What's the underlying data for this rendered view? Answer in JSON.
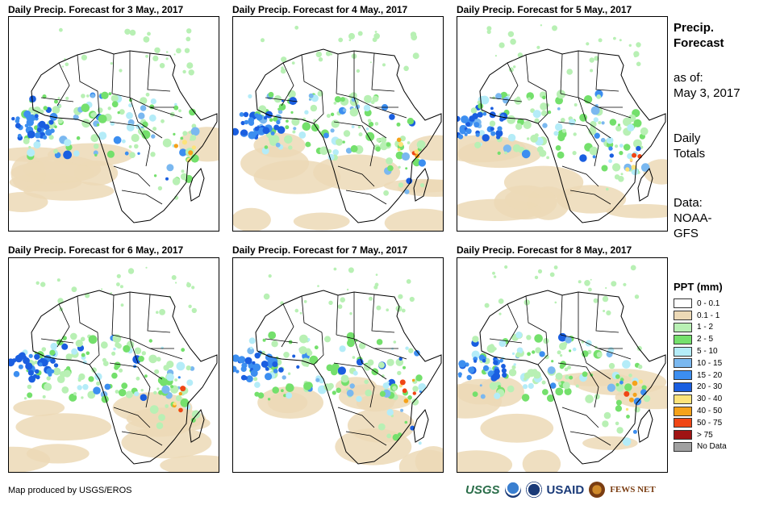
{
  "panels": [
    {
      "title": "Daily Precip. Forecast for 3 May., 2017"
    },
    {
      "title": "Daily Precip. Forecast for 4 May., 2017"
    },
    {
      "title": "Daily Precip. Forecast for 5 May., 2017"
    },
    {
      "title": "Daily Precip. Forecast for 6 May., 2017"
    },
    {
      "title": "Daily Precip. Forecast for 7 May., 2017"
    },
    {
      "title": "Daily Precip. Forecast for 8 May., 2017"
    }
  ],
  "info": {
    "title_line1": "Precip.",
    "title_line2": "Forecast",
    "asof_line1": "as of:",
    "asof_line2": "May 3, 2017",
    "totals_line1": "Daily",
    "totals_line2": "Totals",
    "data_line1": "Data:",
    "data_line2": "NOAA-",
    "data_line3": "GFS"
  },
  "legend": {
    "title": "PPT (mm)",
    "items": [
      {
        "label": "0 - 0.1",
        "color": "#ffffff"
      },
      {
        "label": "0.1 - 1",
        "color": "#ecd9b6"
      },
      {
        "label": "1 - 2",
        "color": "#b8f0b4"
      },
      {
        "label": "2 - 5",
        "color": "#74e06c"
      },
      {
        "label": "5 - 10",
        "color": "#b4ecf8"
      },
      {
        "label": "10 - 15",
        "color": "#7ab8f0"
      },
      {
        "label": "15 - 20",
        "color": "#3c8ef0"
      },
      {
        "label": "20 - 30",
        "color": "#1a5ee0"
      },
      {
        "label": "30 - 40",
        "color": "#fde37a"
      },
      {
        "label": "40 - 50",
        "color": "#f5a21a"
      },
      {
        "label": "50 - 75",
        "color": "#f04614"
      },
      {
        "label": "> 75",
        "color": "#a01414"
      },
      {
        "label": "No Data",
        "color": "#a0a0a0"
      }
    ]
  },
  "footer": {
    "credit": "Map produced by USGS/EROS",
    "logo_usgs": "USGS",
    "logo_usaid": "USAID",
    "logo_fews": "FEWS NET"
  }
}
